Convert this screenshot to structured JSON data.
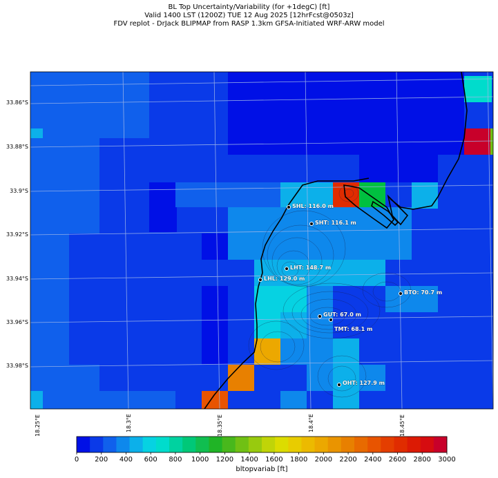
{
  "title": {
    "line1": "BL Top Uncertainty/Variability (for +1degC) [ft]",
    "line2": "Valid 1400 LST (1200Z) TUE 12 Aug 2025 [12hrFcst@0503z]",
    "line3": "FDV replot - DrJack BLIPMAP from RASP 1.3km GFSA-Initiated WRF-ARW model"
  },
  "lat_labels": [
    "33.86°S",
    "33.88°S",
    "33.9°S",
    "33.92°S",
    "33.94°S",
    "33.96°S",
    "33.98°S"
  ],
  "lon_labels": [
    "18.25°E",
    "18.3°E",
    "18.35°E",
    "18.4°E",
    "18.45°E"
  ],
  "colorbar": {
    "label": "bltopvariab [ft]",
    "ticks": [
      "0",
      "200",
      "400",
      "600",
      "800",
      "1000",
      "1200",
      "1400",
      "1600",
      "1800",
      "2000",
      "2200",
      "2400",
      "2600",
      "2800",
      "3000"
    ],
    "colors": [
      "#0010e6",
      "#0a3ae8",
      "#1060ec",
      "#0e88ec",
      "#0cb0ea",
      "#06d2e2",
      "#00dccc",
      "#00d2a0",
      "#00c878",
      "#10be50",
      "#20b426",
      "#48b81c",
      "#70c014",
      "#98ca0e",
      "#c0d408",
      "#dcdc00",
      "#e8cc00",
      "#ecba00",
      "#eca800",
      "#ea9400",
      "#e88000",
      "#e86a00",
      "#e85400",
      "#e43e00",
      "#e02c00",
      "#dc1a04",
      "#d60c10",
      "#c8002a"
    ]
  },
  "stations": [
    {
      "label": "SHL: 116.0 m"
    },
    {
      "label": "SHT: 116.1 m"
    },
    {
      "label": "LHT: 148.7 m"
    },
    {
      "label": "LHL: 129.0 m"
    },
    {
      "label": "BTO: 70.7 m"
    },
    {
      "label": "GUT: 67.0 m"
    },
    {
      "label": "TMT: 68.1 m"
    },
    {
      "label": "OHT: 127.9 m"
    }
  ]
}
